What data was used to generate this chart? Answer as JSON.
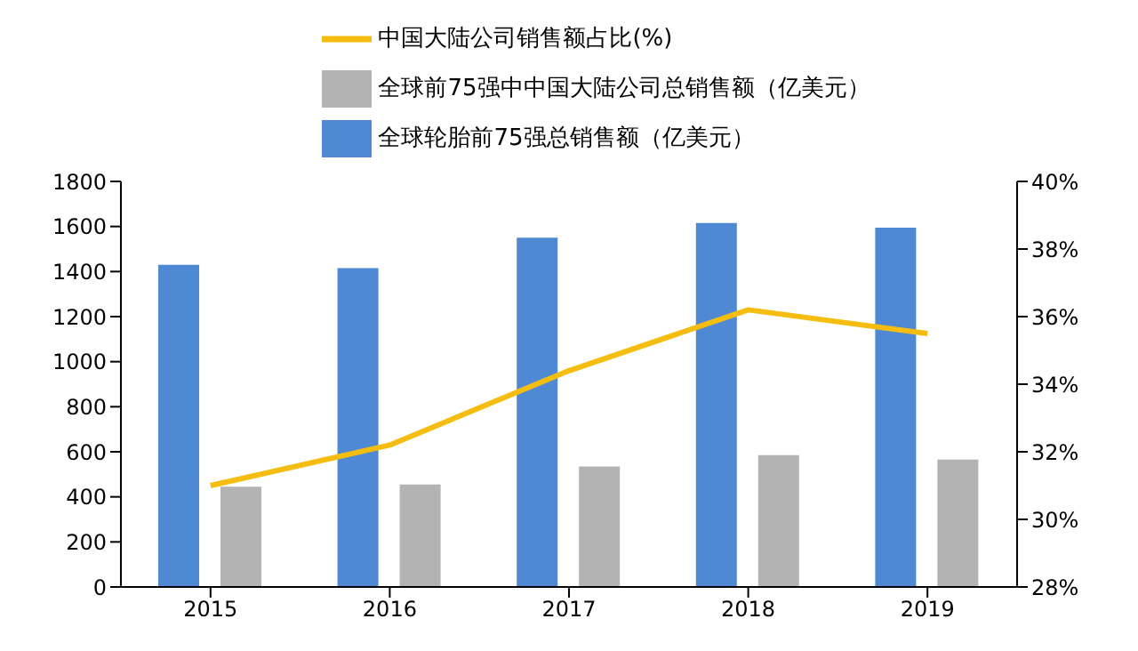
{
  "chart_data": {
    "type": "bar",
    "categories": [
      "2015",
      "2016",
      "2017",
      "2018",
      "2019"
    ],
    "series": [
      {
        "name": "全球轮胎前75强总销售额（亿美元）",
        "color": "#4f88d3",
        "values": [
          1430,
          1415,
          1550,
          1615,
          1595
        ]
      },
      {
        "name": "全球前75强中中国大陆公司总销售额（亿美元）",
        "color": "#b3b3b3",
        "values": [
          445,
          455,
          535,
          585,
          565
        ]
      },
      {
        "name": "中国大陆公司销售额占比(%)",
        "type": "line",
        "axis": "y2",
        "color": "#f5bd0f",
        "values": [
          31.0,
          32.2,
          34.4,
          36.2,
          35.5
        ]
      }
    ],
    "ylim": [
      0,
      1800
    ],
    "yticks": [
      0,
      200,
      400,
      600,
      800,
      1000,
      1200,
      1400,
      1600,
      1800
    ],
    "y2lim": [
      28,
      40
    ],
    "y2ticks": [
      {
        "value": 28,
        "label": "28%"
      },
      {
        "value": 30,
        "label": "30%"
      },
      {
        "value": 32,
        "label": "32%"
      },
      {
        "value": 34,
        "label": "34%"
      },
      {
        "value": 36,
        "label": "36%"
      },
      {
        "value": 38,
        "label": "38%"
      },
      {
        "value": 40,
        "label": "40%"
      }
    ],
    "legend": "top",
    "marker": "none",
    "grid": false
  }
}
